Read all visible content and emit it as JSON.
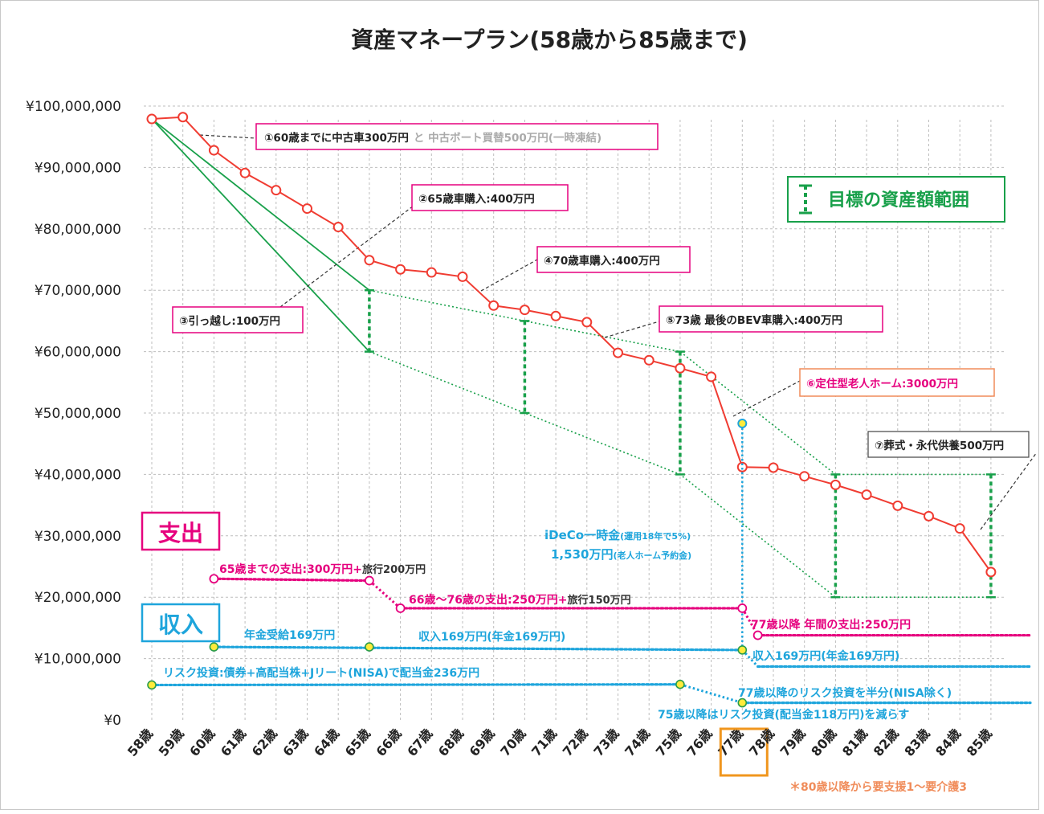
{
  "chart_data": {
    "type": "line",
    "title": "資産マネープラン(58歳から85歳まで)",
    "categories": [
      "58歳",
      "59歳",
      "60歳",
      "61歳",
      "62歳",
      "63歳",
      "64歳",
      "65歳",
      "66歳",
      "67歳",
      "68歳",
      "69歳",
      "70歳",
      "71歳",
      "72歳",
      "73歳",
      "74歳",
      "75歳",
      "76歳",
      "77歳",
      "78歳",
      "79歳",
      "80歳",
      "81歳",
      "82歳",
      "83歳",
      "84歳",
      "85歳"
    ],
    "yticks": [
      "¥0",
      "¥10,000,000",
      "¥20,000,000",
      "¥30,000,000",
      "¥40,000,000",
      "¥50,000,000",
      "¥60,000,000",
      "¥70,000,000",
      "¥80,000,000",
      "¥90,000,000",
      "¥100,000,000"
    ],
    "ylim": [
      0,
      100000000
    ],
    "grid": true,
    "highlight_category": "77歳",
    "series": [
      {
        "color": "#f03c32",
        "values": [
          97900000,
          98200000,
          92800000,
          89100000,
          86300000,
          83300000,
          80300000,
          74900000,
          73400000,
          72900000,
          72200000,
          67500000,
          66800000,
          65800000,
          64800000,
          59800000,
          58600000,
          57300000,
          55900000,
          41200000,
          41100000,
          39700000,
          38300000,
          36700000,
          34900000,
          33200000,
          31200000,
          24100000
        ]
      }
    ],
    "target_lines": {
      "color": "#18a04a",
      "from": {
        "x": "58歳",
        "y": 97900000
      },
      "upper": [
        {
          "x": "65歳",
          "y": 70000000
        },
        {
          "x": "75歳",
          "y": 60000000
        },
        {
          "x": "80歳",
          "y": 40000000
        },
        {
          "x": "85歳",
          "y": 40000000
        }
      ],
      "lower": [
        {
          "x": "65歳",
          "y": 60000000
        },
        {
          "x": "75歳",
          "y": 40000000
        },
        {
          "x": "80歳",
          "y": 20000000
        },
        {
          "x": "85歳",
          "y": 20000000
        }
      ],
      "ranges": [
        {
          "x": "65歳",
          "low": 60000000,
          "high": 70000000
        },
        {
          "x": "70歳",
          "low": 50000000,
          "high": 65000000
        },
        {
          "x": "75歳",
          "low": 40000000,
          "high": 60000000
        },
        {
          "x": "80歳",
          "low": 20000000,
          "high": 40000000
        },
        {
          "x": "85歳",
          "low": 20000000,
          "high": 40000000
        }
      ]
    },
    "expense_lines": {
      "color": "#e6007e",
      "segments": [
        {
          "from": {
            "x": "60歳",
            "y": 23000000
          },
          "to": {
            "x": "65歳",
            "y": 22700000
          }
        },
        {
          "from": {
            "x": "66歳",
            "y": 18200000
          },
          "to": {
            "x": "77歳",
            "y": 18200000
          }
        },
        {
          "from": {
            "x": "77.5",
            "y": 13800000
          },
          "to": {
            "x": "end",
            "y": 13800000
          }
        }
      ],
      "points": [
        {
          "x": "60歳",
          "y": 23000000
        },
        {
          "x": "65歳",
          "y": 22700000
        },
        {
          "x": "66歳",
          "y": 18200000
        },
        {
          "x": "77歳",
          "y": 18200000
        },
        {
          "x": "77.5",
          "y": 13800000
        }
      ]
    },
    "income_lines": {
      "color": "#1ea5dc",
      "segments": [
        {
          "from": {
            "x": "60歳",
            "y": 11900000
          },
          "to": {
            "x": "77歳",
            "y": 11400000
          }
        },
        {
          "from": {
            "x": "77.5",
            "y": 8700000
          },
          "to": {
            "x": "end",
            "y": 8700000
          }
        },
        {
          "from": {
            "x": "58歳",
            "y": 5700000
          },
          "to": {
            "x": "75歳",
            "y": 5800000
          }
        },
        {
          "from": {
            "x": "77歳",
            "y": 2800000
          },
          "to": {
            "x": "end",
            "y": 2800000
          }
        }
      ],
      "points": [
        {
          "x": "60歳",
          "y": 11900000
        },
        {
          "x": "65歳",
          "y": 11900000
        },
        {
          "x": "77歳",
          "y": 11400000
        },
        {
          "x": "58歳",
          "y": 5700000
        },
        {
          "x": "75歳",
          "y": 5800000
        },
        {
          "x": "77歳",
          "y": 2800000
        }
      ],
      "ideco_point": {
        "x": "77歳",
        "y": 48300000
      }
    }
  },
  "annotations": {
    "a1_main": "①60歳までに中古車300万円",
    "a1_gray": "と 中古ボート買替500万円(一時凍結)",
    "a2": "②65歳車購入:400万円",
    "a3": "③引っ越し:100万円",
    "a4": "④70歳車購入:400万円",
    "a5": "⑤73歳 最後のBEV車購入:400万円",
    "a6": "⑥定住型老人ホーム:3000万円",
    "a7": "⑦葬式・永代供養500万円"
  },
  "legend": {
    "label": "目標の資産額範囲",
    "color": "#18a04a"
  },
  "side_labels": {
    "expense": {
      "text": "支出",
      "color": "#e6007e"
    },
    "income": {
      "text": "収入",
      "color": "#1ea5dc"
    }
  },
  "expense_texts": {
    "e1_main": "65歳までの支出:300万円+",
    "e1_sub": "旅行200万円",
    "e2_main": "66歳〜76歳の支出:250万円+",
    "e2_sub": "旅行150万円",
    "e3": "77歳以降 年間の支出:250万円"
  },
  "income_texts": {
    "i1": "年金受給169万円",
    "i2": "収入169万円(年金169万円)",
    "i3": "収入169万円(年金169万円)",
    "i4": "リスク投資:債券+高配当株+Jリート(NISA)で配当金236万円",
    "i5": "77歳以降のリスク投資を半分(NISA除く)",
    "i6": "75歳以降はリスク投資(配当金118万円)を減らす",
    "ideco1_main": "iDeCo一時金",
    "ideco1_sub": "(運用18年で5%)",
    "ideco2_main": "1,530万円",
    "ideco2_sub": "(老人ホーム予約金)"
  },
  "footnote": "＊80歳以降から要支援1〜要介護3",
  "colors": {
    "highlight": "#f0961e",
    "grid": "#bdbdbd"
  }
}
